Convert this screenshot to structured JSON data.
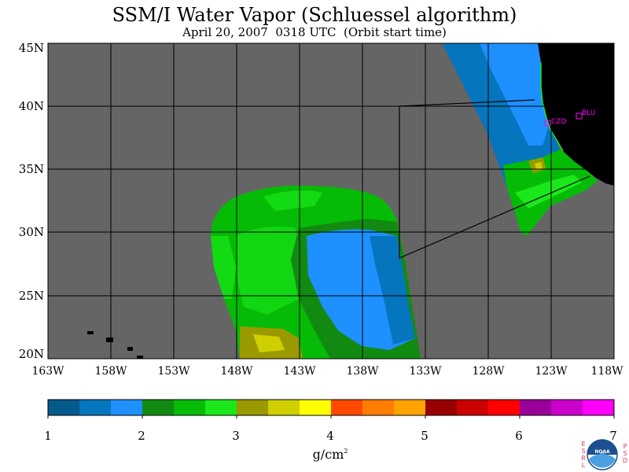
{
  "title": "SSM/I Water Vapor (Schluessel algorithm)",
  "subtitle": "April 20, 2007  0318 UTC  (Orbit start time)",
  "lat_labels": [
    "45N",
    "40N",
    "35N",
    "30N",
    "25N",
    "20N"
  ],
  "lon_labels": [
    "163W",
    "158W",
    "153W",
    "148W",
    "143W",
    "138W",
    "133W",
    "128W",
    "123W",
    "118W"
  ],
  "stations": [
    {
      "name": "CZD"
    },
    {
      "name": "BLU"
    }
  ],
  "colorbar": {
    "colors": [
      "#045a8d",
      "#0575bd",
      "#1e90ff",
      "#128a12",
      "#06bb06",
      "#1ae81a",
      "#9a9a00",
      "#cfcf00",
      "#ffff00",
      "#ff4800",
      "#ff7d00",
      "#ffa300",
      "#990000",
      "#cc0000",
      "#ff0000",
      "#990099",
      "#cc00cc",
      "#ff00ff"
    ],
    "labels": [
      "1",
      "2",
      "3",
      "4",
      "5",
      "6",
      "7"
    ],
    "units_main": "g/cm",
    "units_sup": "2"
  },
  "logo": {
    "text": "NOAA",
    "left_letters": [
      "E",
      "S",
      "R",
      "L"
    ],
    "right_letters": [
      "P",
      "S",
      "D"
    ]
  },
  "colors": {
    "no_data": "#656565",
    "land": "#000000",
    "grid": "#000000",
    "station": "#ff00ff"
  }
}
